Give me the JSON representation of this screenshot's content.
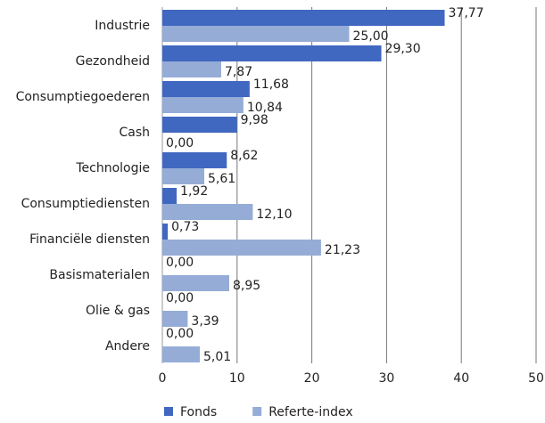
{
  "chart_data": {
    "type": "hbar",
    "categories": [
      "Industrie",
      "Gezondheid",
      "Consumptiegoederen",
      "Cash",
      "Technologie",
      "Consumptiediensten",
      "Financiële diensten",
      "Basismaterialen",
      "Olie & gas",
      "Andere"
    ],
    "series": [
      {
        "name": "Fonds",
        "color": "#4068c0",
        "values": [
          37.77,
          29.3,
          11.68,
          9.98,
          8.62,
          1.92,
          0.73,
          0,
          0,
          0
        ],
        "value_labels": [
          "37,77",
          "29,30",
          "11,68",
          "9,98",
          "8,62",
          "1,92",
          "0,73",
          "0,00",
          "0,00",
          "0,00"
        ]
      },
      {
        "name": "Referte-index",
        "color": "#95acd7",
        "values": [
          25.0,
          7.87,
          10.84,
          0,
          5.61,
          12.1,
          21.23,
          8.95,
          3.39,
          5.01
        ],
        "value_labels": [
          "25,00",
          "7,87",
          "10,84",
          "0,00",
          "5,61",
          "12,10",
          "21,23",
          "8,95",
          "3,39",
          "5,01"
        ]
      }
    ],
    "xlim": [
      0,
      50
    ],
    "xticks": [
      0,
      10,
      20,
      30,
      40,
      50
    ],
    "grid": true,
    "legend": "bottom"
  }
}
